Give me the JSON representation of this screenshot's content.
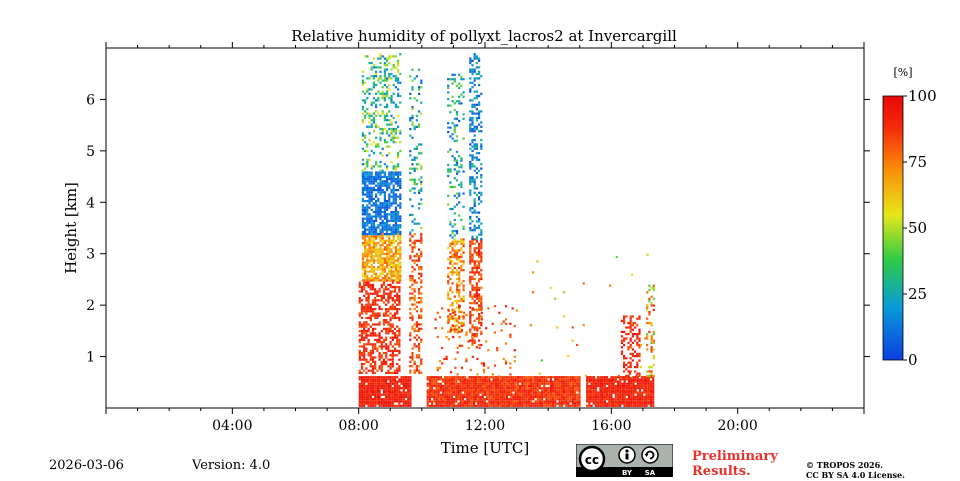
{
  "chart_data": {
    "type": "heatmap",
    "title": "Relative humidity of pollyxt_lacros2 at Invercargill",
    "xlabel": "Time [UTC]",
    "ylabel": "Height [km]",
    "x_range_hours": [
      0,
      24
    ],
    "y_range_km": [
      0,
      7
    ],
    "x_ticks": [
      {
        "hour": 4,
        "label": "04:00"
      },
      {
        "hour": 8,
        "label": "08:00"
      },
      {
        "hour": 12,
        "label": "12:00"
      },
      {
        "hour": 16,
        "label": "16:00"
      },
      {
        "hour": 20,
        "label": "20:00"
      }
    ],
    "y_ticks": [
      {
        "km": 1,
        "label": "1"
      },
      {
        "km": 2,
        "label": "2"
      },
      {
        "km": 3,
        "label": "3"
      },
      {
        "km": 4,
        "label": "4"
      },
      {
        "km": 5,
        "label": "5"
      },
      {
        "km": 6,
        "label": "6"
      }
    ],
    "colorbar": {
      "unit": "[%]",
      "range": [
        0,
        100
      ],
      "ticks": [
        {
          "value": 0,
          "label": "0"
        },
        {
          "value": 25,
          "label": "25"
        },
        {
          "value": 50,
          "label": "50"
        },
        {
          "value": 75,
          "label": "75"
        },
        {
          "value": 100,
          "label": "100"
        }
      ],
      "colormap": [
        "#0b3ee0",
        "#0a9ad8",
        "#2ecc46",
        "#e6e619",
        "#fa8f0a",
        "#f52a0a",
        "#e80808"
      ]
    },
    "regions": [
      {
        "name": "boundary layer 08-10",
        "t0": 8.0,
        "t1": 9.65,
        "h0": 0.05,
        "h1": 0.62,
        "rh": [
          86,
          98
        ],
        "density": 0.95
      },
      {
        "name": "boundary layer 10-15",
        "t0": 10.15,
        "t1": 15.0,
        "h0": 0.05,
        "h1": 0.62,
        "rh": [
          80,
          95
        ],
        "density": 0.95
      },
      {
        "name": "boundary layer 15-17",
        "t0": 15.2,
        "t1": 17.3,
        "h0": 0.05,
        "h1": 0.62,
        "rh": [
          85,
          97
        ],
        "density": 0.95
      },
      {
        "name": "moist layer 08h",
        "t0": 8.0,
        "t1": 9.3,
        "h0": 0.7,
        "h1": 2.5,
        "rh": [
          80,
          96
        ],
        "density": 0.55
      },
      {
        "name": "mid layer 08h",
        "t0": 8.1,
        "t1": 9.3,
        "h0": 2.5,
        "h1": 3.4,
        "rh": [
          55,
          80
        ],
        "density": 0.8
      },
      {
        "name": "dry aloft 08h",
        "t0": 8.1,
        "t1": 9.3,
        "h0": 3.4,
        "h1": 4.6,
        "rh": [
          3,
          20
        ],
        "density": 0.75
      },
      {
        "name": "upper 08h",
        "t0": 8.1,
        "t1": 9.3,
        "h0": 4.6,
        "h1": 6.9,
        "rh": [
          10,
          60
        ],
        "density": 0.3
      },
      {
        "name": "column 9.8h",
        "t0": 9.6,
        "t1": 10.0,
        "h0": 0.7,
        "h1": 3.4,
        "rh": [
          70,
          95
        ],
        "density": 0.45
      },
      {
        "name": "column 9.8h upper",
        "t0": 9.6,
        "t1": 10.0,
        "h0": 3.4,
        "h1": 6.6,
        "rh": [
          5,
          50
        ],
        "density": 0.2
      },
      {
        "name": "column 11h",
        "t0": 10.8,
        "t1": 11.3,
        "h0": 1.5,
        "h1": 3.3,
        "rh": [
          55,
          90
        ],
        "density": 0.5
      },
      {
        "name": "column 11h upper",
        "t0": 10.8,
        "t1": 11.3,
        "h0": 3.3,
        "h1": 6.5,
        "rh": [
          5,
          45
        ],
        "density": 0.22
      },
      {
        "name": "column 11.7h",
        "t0": 11.5,
        "t1": 11.9,
        "h0": 1.2,
        "h1": 3.3,
        "rh": [
          75,
          95
        ],
        "density": 0.55
      },
      {
        "name": "column 11.7h upper",
        "t0": 11.5,
        "t1": 11.9,
        "h0": 3.3,
        "h1": 6.9,
        "rh": [
          2,
          30
        ],
        "density": 0.35
      },
      {
        "name": "scatter 10-13",
        "t0": 10.4,
        "t1": 13.0,
        "h0": 0.6,
        "h1": 2.0,
        "rh": [
          70,
          95
        ],
        "density": 0.08
      },
      {
        "name": "evening plume 16.5h",
        "t0": 16.3,
        "t1": 16.9,
        "h0": 0.6,
        "h1": 1.8,
        "rh": [
          82,
          97
        ],
        "density": 0.45
      },
      {
        "name": "evening column 17.2h",
        "t0": 17.1,
        "t1": 17.35,
        "h0": 0.6,
        "h1": 2.4,
        "rh": [
          40,
          90
        ],
        "density": 0.3
      },
      {
        "name": "sparse 13-17",
        "t0": 13.0,
        "t1": 17.3,
        "h0": 0.6,
        "h1": 3.0,
        "rh": [
          40,
          90
        ],
        "density": 0.012
      }
    ]
  },
  "footer": {
    "date": "2026-03-06",
    "version": "Version: 4.0",
    "preliminary_line1": "Preliminary",
    "preliminary_line2": "Results.",
    "copyright_line1": "© TROPOS 2026.",
    "copyright_line2": "CC BY SA 4.0 License."
  },
  "license_badge": {
    "cc": "cc",
    "by": "BY",
    "sa": "SA"
  }
}
